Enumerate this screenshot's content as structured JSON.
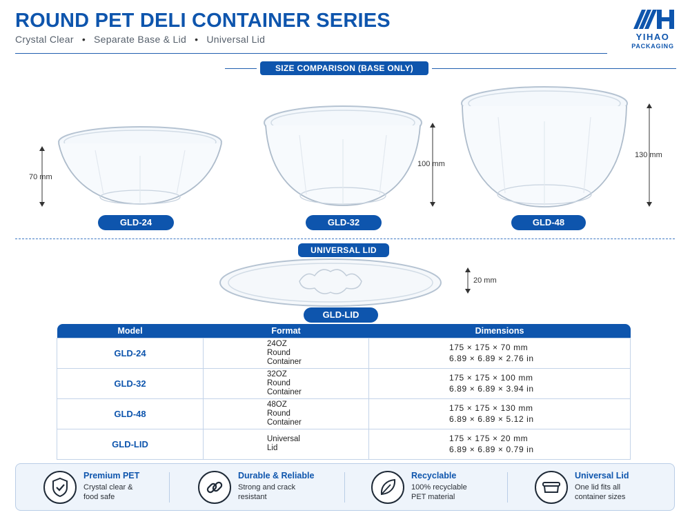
{
  "header": {
    "title": "ROUND PET DELI CONTAINER SERIES",
    "subtitle_items": [
      "Crystal Clear",
      "Separate Base & Lid",
      "Universal Lid"
    ]
  },
  "logo": {
    "name": "YIHAO",
    "sub": "PACKAGING"
  },
  "size_comparison": {
    "label": "SIZE COMPARISON (BASE ONLY)",
    "items": [
      {
        "model": "GLD-24",
        "height": "70 mm"
      },
      {
        "model": "GLD-32",
        "height": "100 mm"
      },
      {
        "model": "GLD-48",
        "height": "130 mm"
      }
    ]
  },
  "lid": {
    "label": "UNIVERSAL LID",
    "model": "GLD-LID",
    "height": "20 mm"
  },
  "table": {
    "headers": [
      "Model",
      "Format",
      "Dimensions"
    ],
    "rows": [
      {
        "model": "GLD-24",
        "format": [
          "24OZ",
          "Round",
          "Container"
        ],
        "dims_mm": "175 × 175 × 70 mm",
        "dims_in": "6.89 × 6.89 × 2.76 in"
      },
      {
        "model": "GLD-32",
        "format": [
          "32OZ",
          "Round",
          "Container"
        ],
        "dims_mm": "175 × 175 × 100 mm",
        "dims_in": "6.89 × 6.89 × 3.94 in"
      },
      {
        "model": "GLD-48",
        "format": [
          "48OZ",
          "Round",
          "Container"
        ],
        "dims_mm": "175 × 175 × 130 mm",
        "dims_in": "6.89 × 6.89 × 5.12 in"
      },
      {
        "model": "GLD-LID",
        "format": [
          "Universal",
          "Lid"
        ],
        "dims_mm": "175 × 175 × 20 mm",
        "dims_in": "6.89 × 6.89 × 0.79 in"
      }
    ]
  },
  "features": [
    {
      "icon": "shield-check-icon",
      "title": "Premium PET",
      "desc": [
        "Crystal clear &",
        "food safe"
      ]
    },
    {
      "icon": "chain-link-icon",
      "title": "Durable & Reliable",
      "desc": [
        "Strong and crack",
        "resistant"
      ]
    },
    {
      "icon": "leaf-icon",
      "title": "Recyclable",
      "desc": [
        "100% recyclable",
        "PET material"
      ]
    },
    {
      "icon": "container-icon",
      "title": "Universal Lid",
      "desc": [
        "One lid fits all",
        "container sizes"
      ]
    }
  ],
  "colors": {
    "brand": "#0e55ad",
    "panel": "#eef4fb"
  }
}
